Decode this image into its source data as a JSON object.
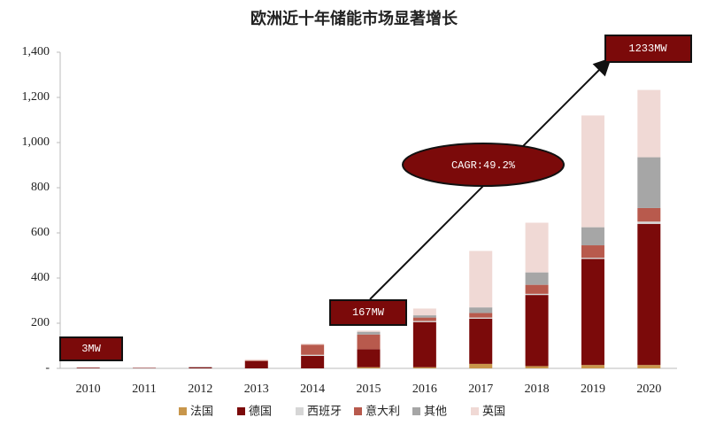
{
  "chart_data": {
    "type": "stacked_bar",
    "title": "欧洲近十年储能市场显著增长",
    "categories": [
      "2010",
      "2011",
      "2012",
      "2013",
      "2014",
      "2015",
      "2016",
      "2017",
      "2018",
      "2019",
      "2020"
    ],
    "series": [
      {
        "name": "法国",
        "color": "#c8964b",
        "values": [
          0,
          0,
          0,
          0,
          0,
          5,
          5,
          20,
          10,
          15,
          15
        ]
      },
      {
        "name": "德国",
        "color": "#7b0a0a",
        "values": [
          3,
          2,
          5,
          32,
          55,
          80,
          200,
          200,
          315,
          470,
          625
        ]
      },
      {
        "name": "西班牙",
        "color": "#d6d6d6",
        "values": [
          0,
          0,
          3,
          0,
          5,
          0,
          5,
          5,
          5,
          5,
          10
        ]
      },
      {
        "name": "意大利",
        "color": "#b85a4d",
        "values": [
          0,
          0,
          0,
          3,
          45,
          65,
          15,
          20,
          40,
          55,
          60
        ]
      },
      {
        "name": "其他",
        "color": "#a6a6a6",
        "values": [
          0,
          0,
          0,
          0,
          0,
          12,
          10,
          25,
          55,
          80,
          225
        ]
      },
      {
        "name": "英国",
        "color": "#f0d9d5",
        "values": [
          0,
          0,
          0,
          5,
          5,
          5,
          30,
          250,
          220,
          495,
          298
        ]
      }
    ],
    "ylim": [
      0,
      1400
    ],
    "yticks": [
      {
        "value": 0,
        "label": "-"
      },
      200,
      400,
      600,
      800,
      {
        "value": 1000,
        "label": "1,000"
      },
      {
        "value": 1200,
        "label": "1,200"
      },
      {
        "value": 1400,
        "label": "1,400"
      }
    ],
    "annotations": [
      "3MW",
      "167MW",
      "1233MW",
      "CAGR:49.2%"
    ]
  }
}
